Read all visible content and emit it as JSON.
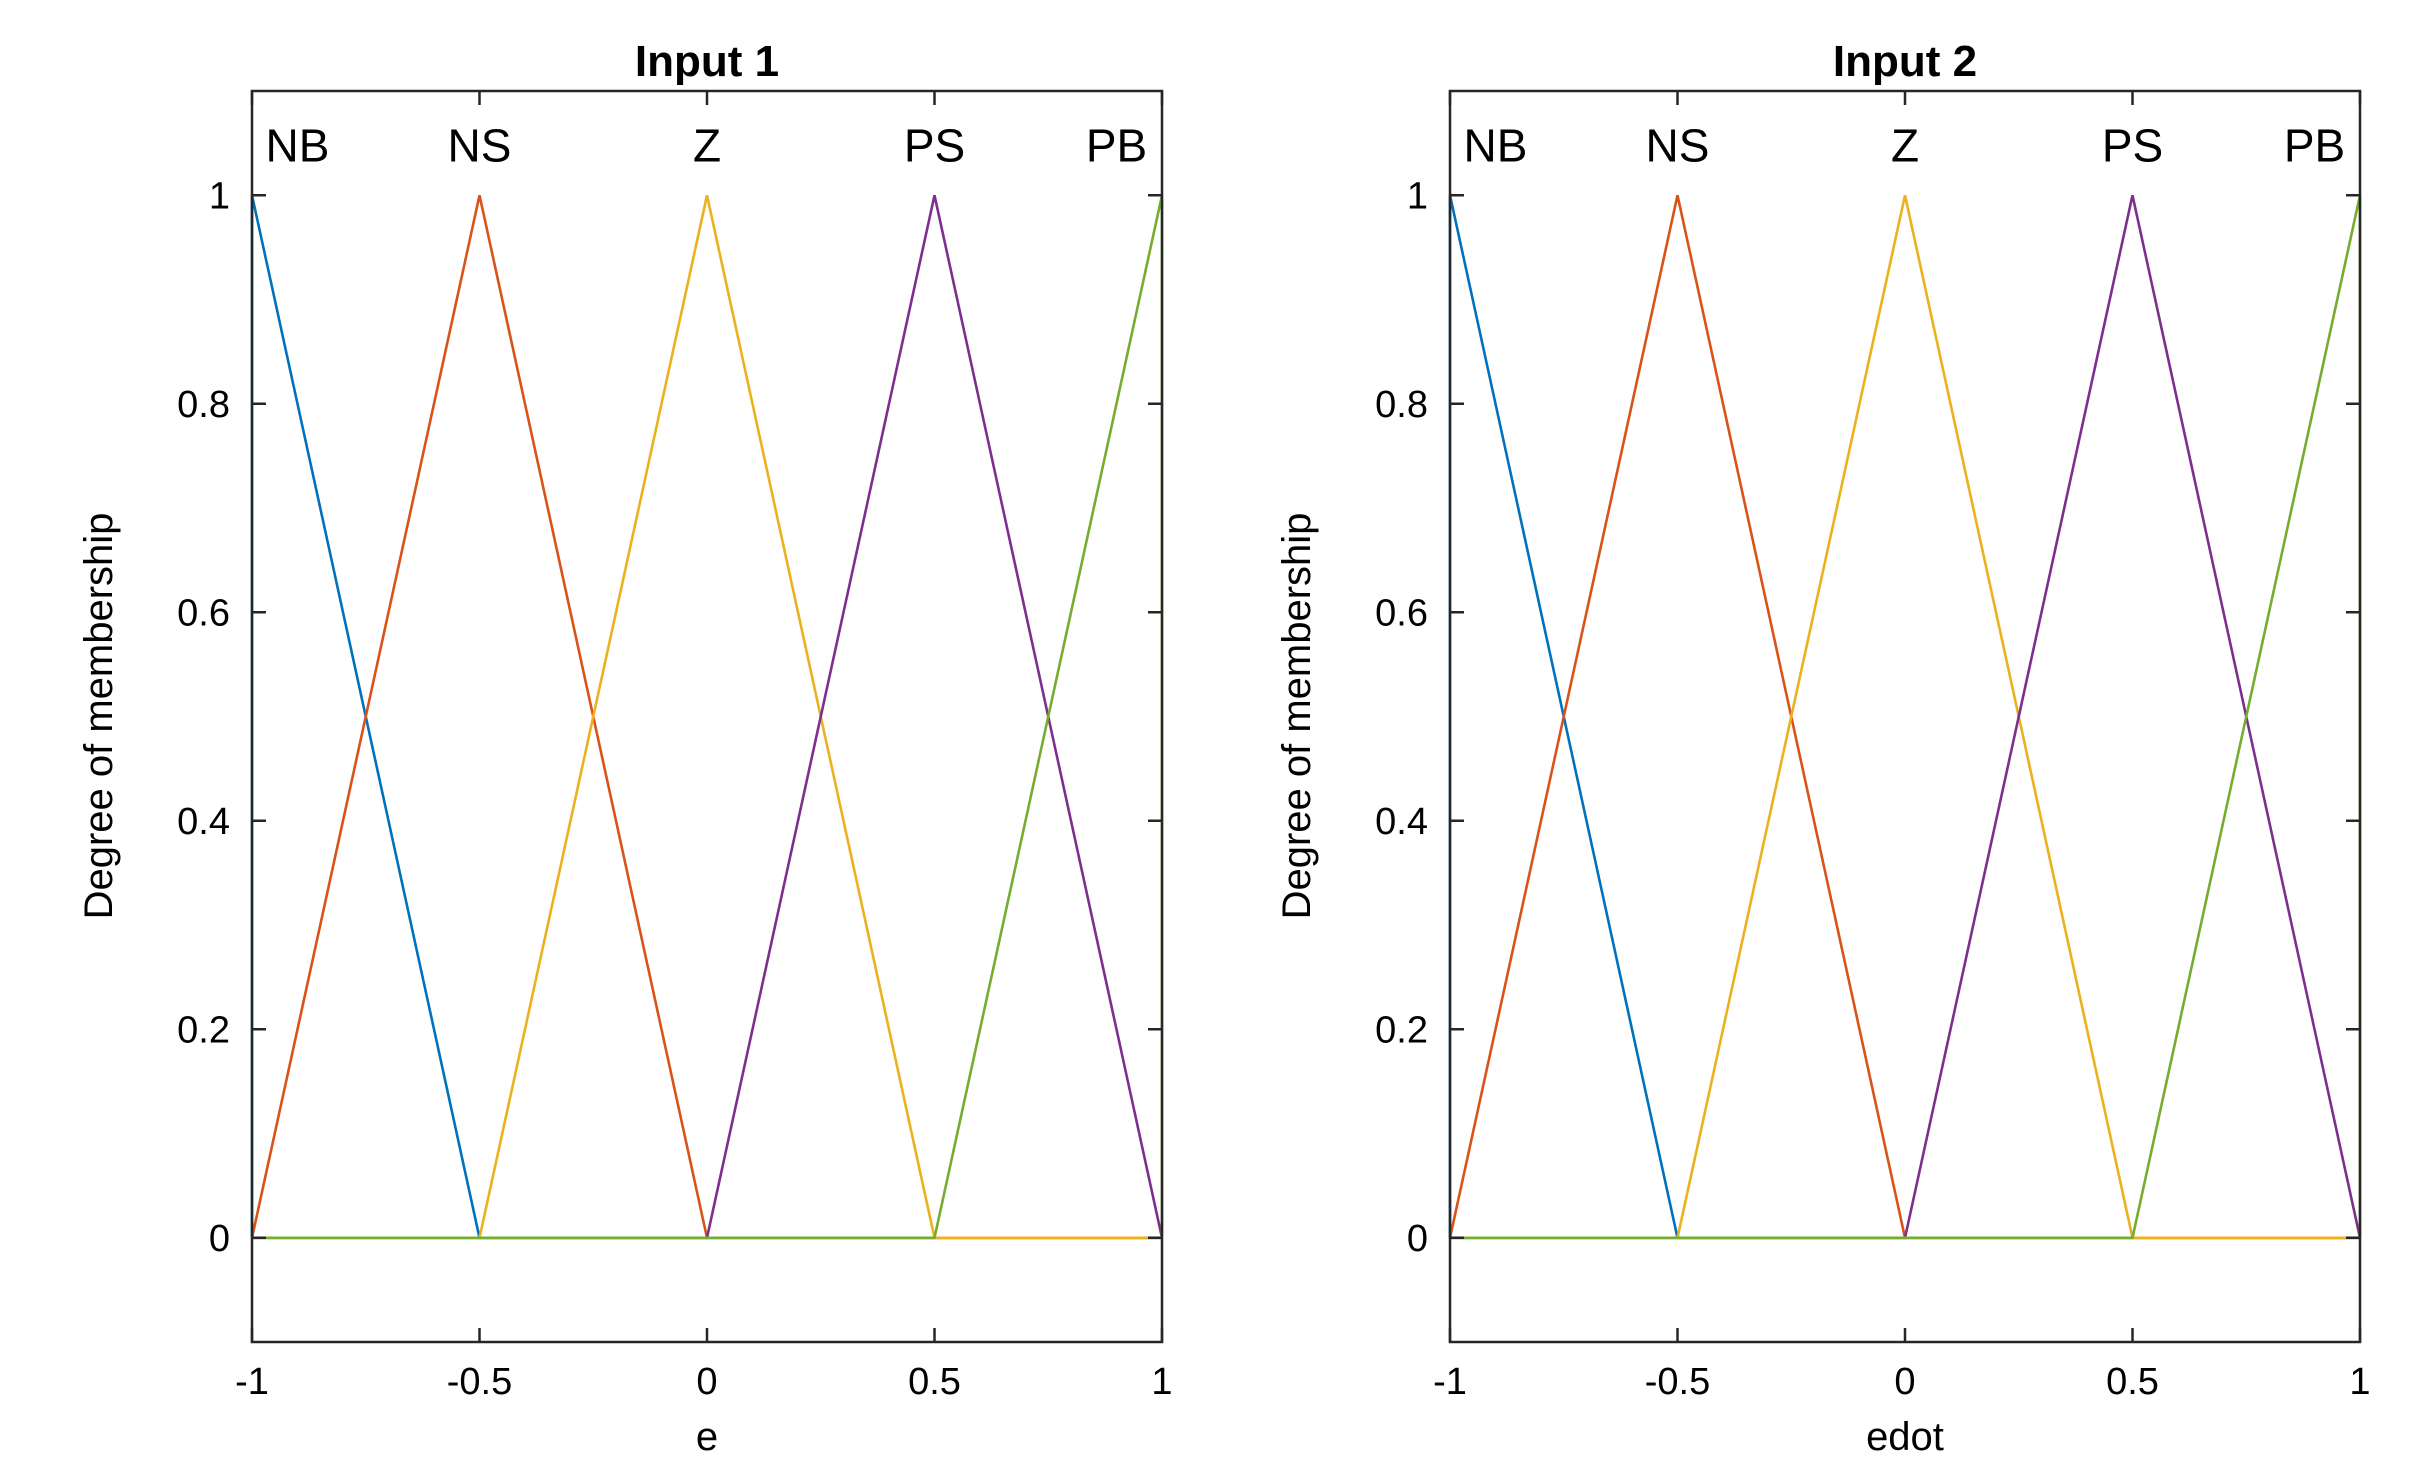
{
  "chart_data": [
    {
      "type": "line",
      "title": "Input 1",
      "xlabel": "e",
      "ylabel": "Degree of membership",
      "xlim": [
        -1,
        1
      ],
      "ylim": [
        -0.1,
        1.1
      ],
      "xticks": [
        -1,
        -0.5,
        0,
        0.5,
        1
      ],
      "xtick_labels": [
        "-1",
        "-0.5",
        "0",
        "0.5",
        "1"
      ],
      "yticks": [
        0,
        0.2,
        0.4,
        0.6,
        0.8,
        1
      ],
      "ytick_labels": [
        "0",
        "0.2",
        "0.4",
        "0.6",
        "0.8",
        "1"
      ],
      "grid": false,
      "series": [
        {
          "name": "NB",
          "color": "#0072BD",
          "x": [
            -1,
            -1,
            -0.5,
            1
          ],
          "y": [
            0,
            1,
            0,
            0
          ]
        },
        {
          "name": "NS",
          "color": "#D95319",
          "x": [
            -1,
            -0.5,
            0,
            1
          ],
          "y": [
            0,
            1,
            0,
            0
          ]
        },
        {
          "name": "Z",
          "color": "#EDB120",
          "x": [
            -1,
            -0.5,
            0,
            0.5,
            1
          ],
          "y": [
            0,
            0,
            1,
            0,
            0
          ]
        },
        {
          "name": "PS",
          "color": "#7E2F8E",
          "x": [
            -1,
            0,
            0.5,
            1
          ],
          "y": [
            0,
            0,
            1,
            0
          ]
        },
        {
          "name": "PB",
          "color": "#77AC30",
          "x": [
            -1,
            0.5,
            1,
            1
          ],
          "y": [
            0,
            0,
            1,
            0
          ]
        }
      ],
      "mf_labels": [
        {
          "text": "NB",
          "x": -0.9
        },
        {
          "text": "NS",
          "x": -0.5
        },
        {
          "text": "Z",
          "x": 0
        },
        {
          "text": "PS",
          "x": 0.5
        },
        {
          "text": "PB",
          "x": 0.9
        }
      ]
    },
    {
      "type": "line",
      "title": "Input 2",
      "xlabel": "edot",
      "ylabel": "Degree of membership",
      "xlim": [
        -1,
        1
      ],
      "ylim": [
        -0.1,
        1.1
      ],
      "xticks": [
        -1,
        -0.5,
        0,
        0.5,
        1
      ],
      "xtick_labels": [
        "-1",
        "-0.5",
        "0",
        "0.5",
        "1"
      ],
      "yticks": [
        0,
        0.2,
        0.4,
        0.6,
        0.8,
        1
      ],
      "ytick_labels": [
        "0",
        "0.2",
        "0.4",
        "0.6",
        "0.8",
        "1"
      ],
      "grid": false,
      "series": [
        {
          "name": "NB",
          "color": "#0072BD",
          "x": [
            -1,
            -1,
            -0.5,
            1
          ],
          "y": [
            0,
            1,
            0,
            0
          ]
        },
        {
          "name": "NS",
          "color": "#D95319",
          "x": [
            -1,
            -0.5,
            0,
            1
          ],
          "y": [
            0,
            1,
            0,
            0
          ]
        },
        {
          "name": "Z",
          "color": "#EDB120",
          "x": [
            -1,
            -0.5,
            0,
            0.5,
            1
          ],
          "y": [
            0,
            0,
            1,
            0,
            0
          ]
        },
        {
          "name": "PS",
          "color": "#7E2F8E",
          "x": [
            -1,
            0,
            0.5,
            1
          ],
          "y": [
            0,
            0,
            1,
            0
          ]
        },
        {
          "name": "PB",
          "color": "#77AC30",
          "x": [
            -1,
            0.5,
            1,
            1
          ],
          "y": [
            0,
            0,
            1,
            0
          ]
        }
      ],
      "mf_labels": [
        {
          "text": "NB",
          "x": -0.9
        },
        {
          "text": "NS",
          "x": -0.5
        },
        {
          "text": "Z",
          "x": 0
        },
        {
          "text": "PS",
          "x": 0.5
        },
        {
          "text": "PB",
          "x": 0.9
        }
      ]
    }
  ]
}
